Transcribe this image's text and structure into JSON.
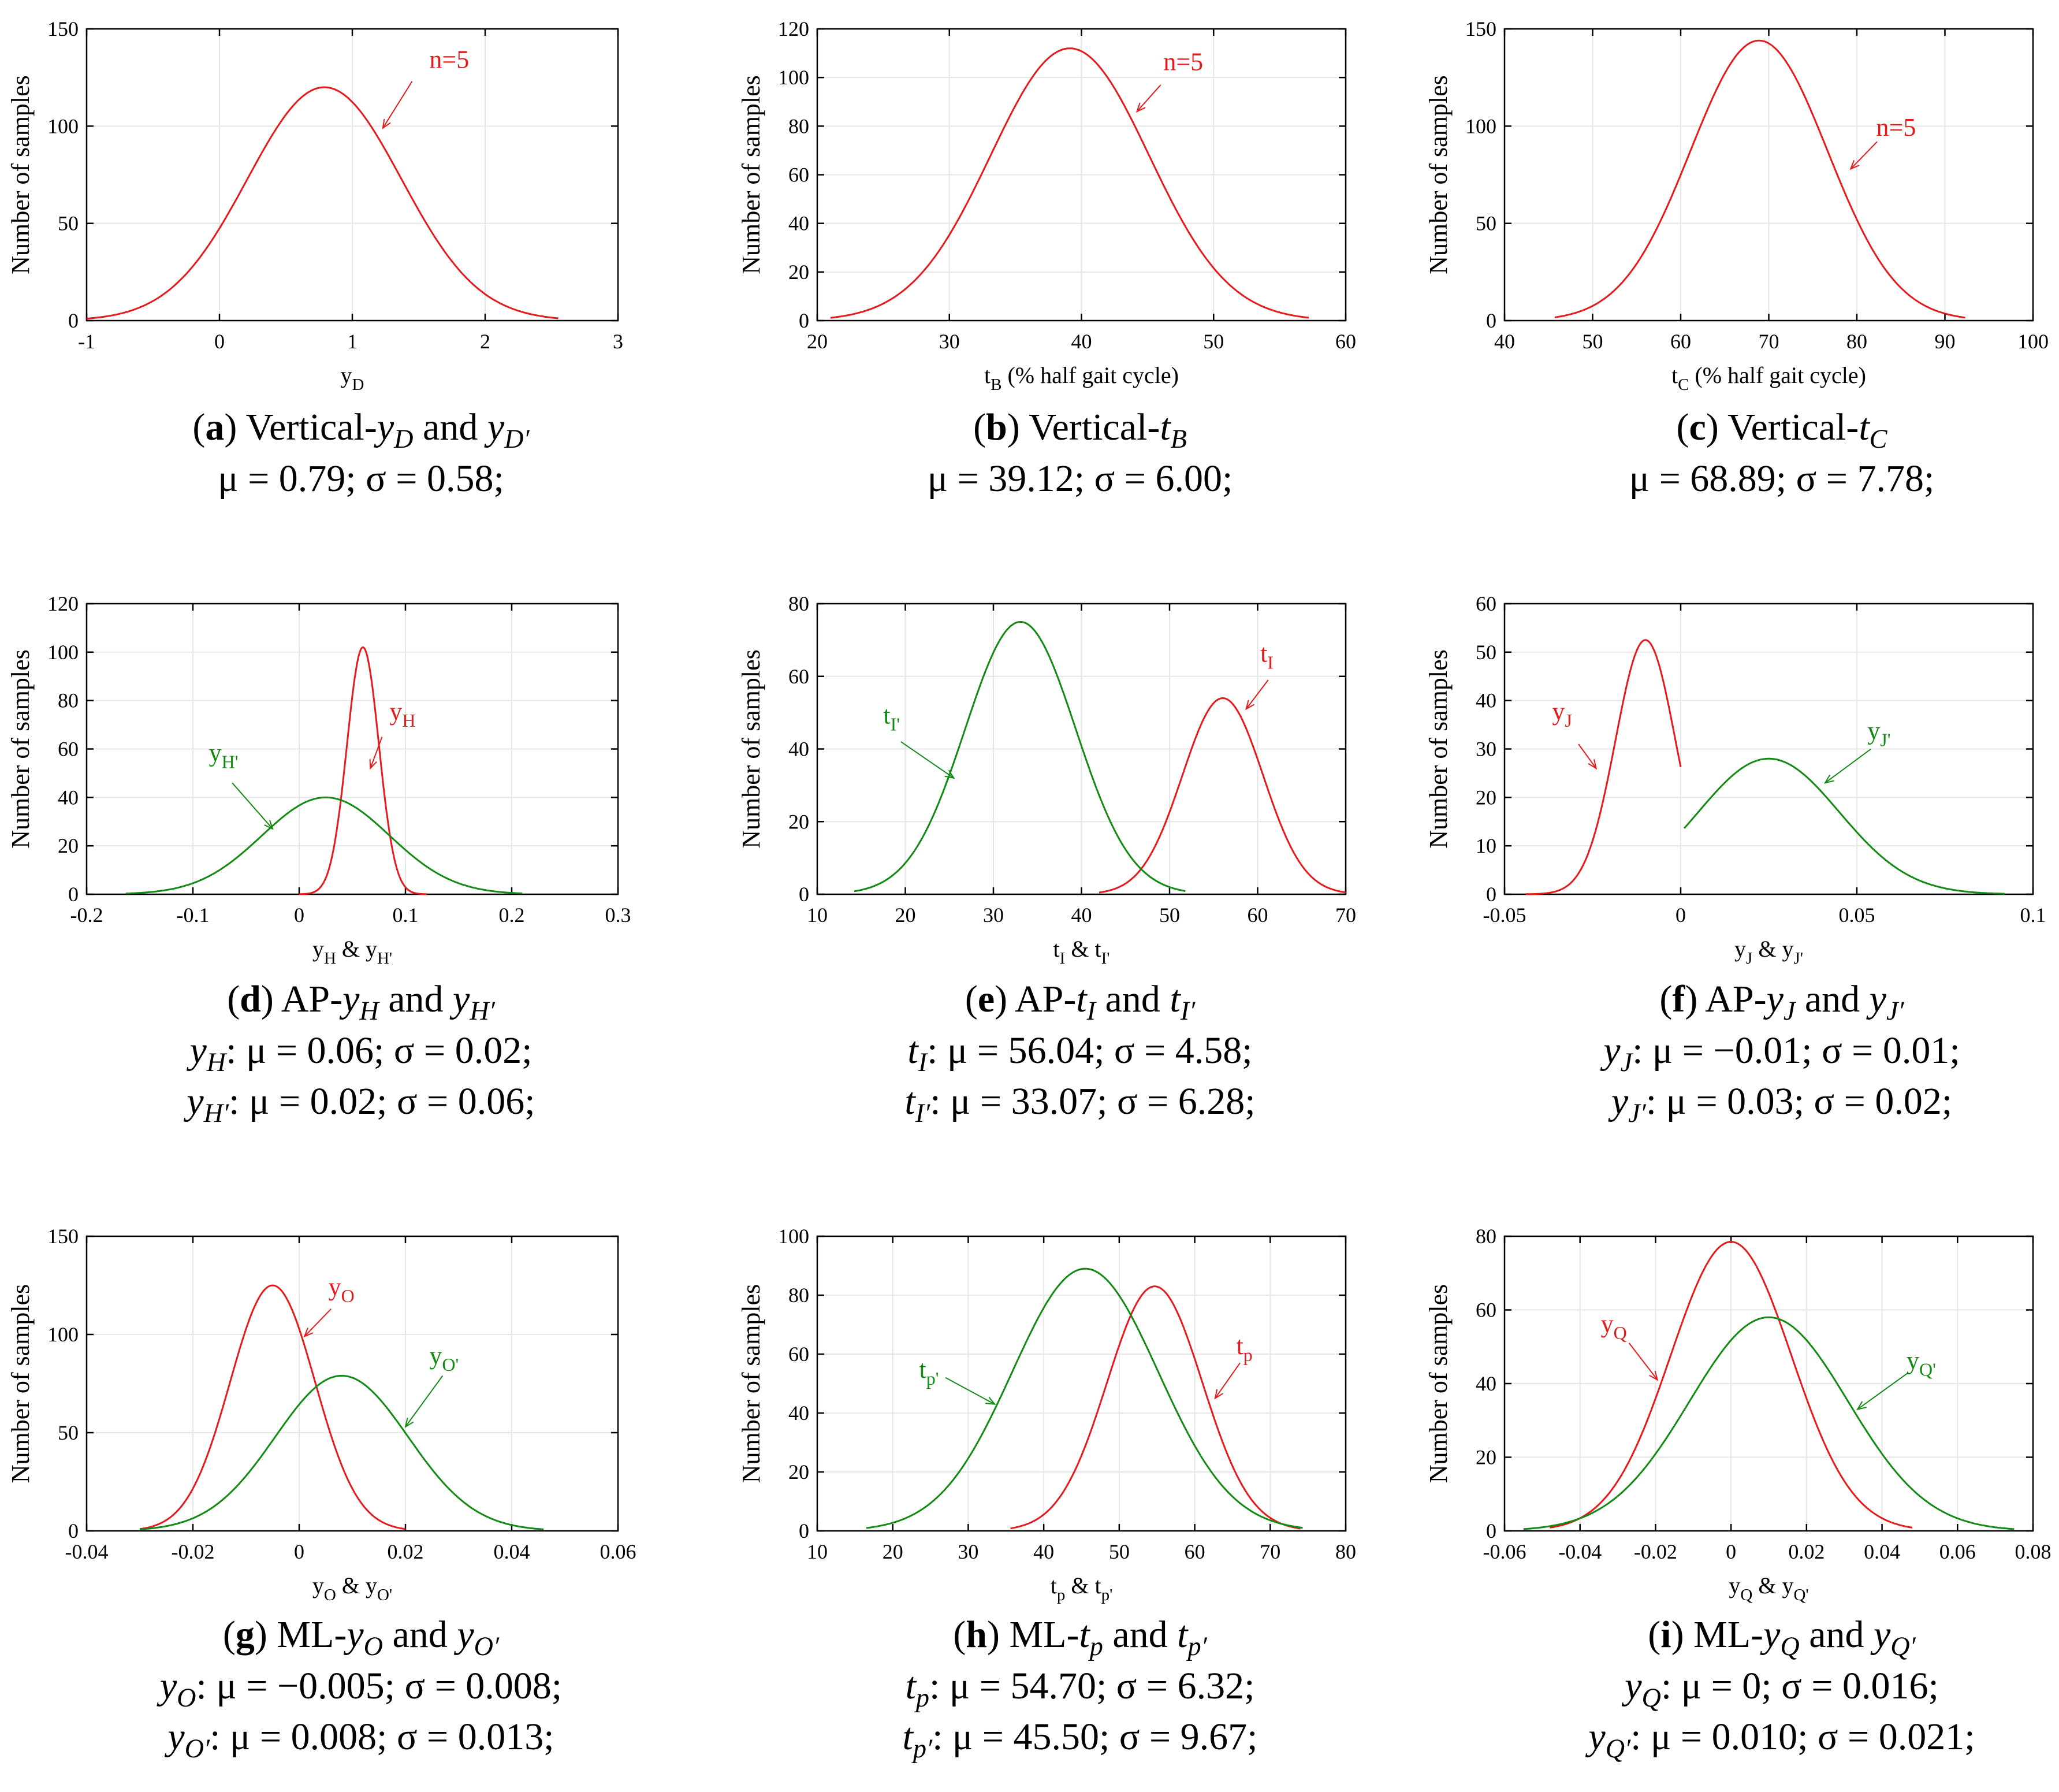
{
  "colors": {
    "red": "#e41a1c",
    "green": "#138a13",
    "axis": "#000000",
    "grid": "#e6e6e6"
  },
  "y_axis_label": "Number of samples",
  "chart_data": [
    {
      "id": "a",
      "type": "line",
      "title": "(a) Vertical-yD and yD'",
      "xlabel": {
        "base": "y",
        "sub": "D"
      },
      "xlim": [
        -1,
        3
      ],
      "xticks": [
        -1,
        0,
        1,
        2,
        3
      ],
      "ylim": [
        0,
        150
      ],
      "yticks": [
        0,
        50,
        100,
        150
      ],
      "series": [
        {
          "name": "n=5",
          "color": "red",
          "mean": 0.79,
          "sd": 0.58,
          "peak": 120,
          "xrange": [
            -1.0,
            2.55
          ]
        }
      ],
      "annotations": [
        {
          "label": "n=5",
          "color": "red",
          "text_at": [
            1.58,
            130
          ],
          "arrow_from": [
            1.45,
            123
          ],
          "arrow_to": [
            1.23,
            99
          ]
        }
      ],
      "caption": {
        "label": "a",
        "title": "Vertical-",
        "var1": {
          "base": "y",
          "sub": "D"
        },
        "joiner": " and ",
        "var2": {
          "base": "y",
          "sub": "D′"
        },
        "lines": [
          {
            "prefix": "",
            "stats": "μ = 0.79; σ = 0.58;"
          }
        ]
      }
    },
    {
      "id": "b",
      "type": "line",
      "title": "(b) Vertical-tB",
      "xlabel": {
        "base": "t",
        "sub": "B",
        "suffix": " (% half gait cycle)"
      },
      "xlim": [
        20,
        60
      ],
      "xticks": [
        20,
        30,
        40,
        50,
        60
      ],
      "ylim": [
        0,
        120
      ],
      "yticks": [
        0,
        20,
        40,
        60,
        80,
        100,
        120
      ],
      "series": [
        {
          "name": "n=5",
          "color": "red",
          "mean": 39.12,
          "sd": 6.0,
          "peak": 112,
          "xrange": [
            21.0,
            57.2
          ]
        }
      ],
      "annotations": [
        {
          "label": "n=5",
          "color": "red",
          "text_at": [
            46.2,
            103
          ],
          "arrow_from": [
            46.0,
            97
          ],
          "arrow_to": [
            44.2,
            86
          ]
        }
      ],
      "caption": {
        "label": "b",
        "title": "Vertical-",
        "var1": {
          "base": "t",
          "sub": "B"
        },
        "lines": [
          {
            "prefix": "",
            "stats": "μ = 39.12; σ = 6.00;"
          }
        ]
      }
    },
    {
      "id": "c",
      "type": "line",
      "title": "(c) Vertical-tC",
      "xlabel": {
        "base": "t",
        "sub": "C",
        "suffix": " (% half gait cycle)"
      },
      "xlim": [
        40,
        100
      ],
      "xticks": [
        40,
        50,
        60,
        70,
        80,
        90,
        100
      ],
      "ylim": [
        0,
        150
      ],
      "yticks": [
        0,
        50,
        100,
        150
      ],
      "series": [
        {
          "name": "n=5",
          "color": "red",
          "mean": 68.89,
          "sd": 7.78,
          "peak": 144,
          "xrange": [
            45.7,
            92.3
          ]
        }
      ],
      "annotations": [
        {
          "label": "n=5",
          "color": "red",
          "text_at": [
            82.2,
            95
          ],
          "arrow_from": [
            82.3,
            92
          ],
          "arrow_to": [
            79.3,
            78
          ]
        }
      ],
      "caption": {
        "label": "c",
        "title": "Vertical-",
        "var1": {
          "base": "t",
          "sub": "C"
        },
        "lines": [
          {
            "prefix": "",
            "stats": "μ = 68.89; σ = 7.78;"
          }
        ]
      }
    },
    {
      "id": "d",
      "type": "line",
      "title": "(d) AP-yH and yH'",
      "xlabel": {
        "base": "y",
        "sub": "H",
        "joiner": " & ",
        "base2": "y",
        "sub2": "H'"
      },
      "xlim": [
        -0.2,
        0.3
      ],
      "xticks": [
        -0.2,
        -0.1,
        0,
        0.1,
        0.2,
        0.3
      ],
      "ylim": [
        0,
        120
      ],
      "yticks": [
        0,
        20,
        40,
        60,
        80,
        100,
        120
      ],
      "series": [
        {
          "name": "yH",
          "color": "red",
          "mean": 0.06,
          "sd": 0.015,
          "peak": 102,
          "xrange": [
            0.0,
            0.12
          ]
        },
        {
          "name": "yH'",
          "color": "green",
          "mean": 0.025,
          "sd": 0.06,
          "peak": 40,
          "xrange": [
            -0.163,
            0.21
          ]
        }
      ],
      "annotations": [
        {
          "label": {
            "base": "y",
            "sub": "H"
          },
          "color": "red",
          "text_at": [
            0.085,
            72
          ],
          "arrow_from": [
            0.078,
            65
          ],
          "arrow_to": [
            0.067,
            52
          ]
        },
        {
          "label": {
            "base": "y",
            "sub": "H'"
          },
          "color": "green",
          "text_at": [
            -0.085,
            55
          ],
          "arrow_from": [
            -0.063,
            46
          ],
          "arrow_to": [
            -0.025,
            27
          ]
        }
      ],
      "caption": {
        "label": "d",
        "title": "AP-",
        "var1": {
          "base": "y",
          "sub": "H"
        },
        "joiner": " and ",
        "var2": {
          "base": "y",
          "sub": "H′"
        },
        "lines": [
          {
            "prefix": {
              "base": "y",
              "sub": "H"
            },
            "stats": ": μ = 0.06; σ = 0.02;"
          },
          {
            "prefix": {
              "base": "y",
              "sub": "H′"
            },
            "stats": ": μ = 0.02; σ = 0.06;"
          }
        ]
      }
    },
    {
      "id": "e",
      "type": "line",
      "title": "(e) AP-tI and tI'",
      "xlabel": {
        "base": "t",
        "sub": "I",
        "joiner": " & ",
        "base2": "t",
        "sub2": "I'"
      },
      "xlim": [
        10,
        70
      ],
      "xticks": [
        10,
        20,
        30,
        40,
        50,
        60,
        70
      ],
      "ylim": [
        0,
        80
      ],
      "yticks": [
        0,
        20,
        40,
        60,
        80
      ],
      "series": [
        {
          "name": "tI",
          "color": "red",
          "mean": 56.04,
          "sd": 4.58,
          "peak": 54,
          "xrange": [
            42.0,
            70.0
          ]
        },
        {
          "name": "tI'",
          "color": "green",
          "mean": 33.07,
          "sd": 6.28,
          "peak": 75,
          "xrange": [
            14.2,
            51.8
          ]
        }
      ],
      "annotations": [
        {
          "label": {
            "base": "t",
            "sub": "I"
          },
          "color": "red",
          "text_at": [
            60.3,
            64
          ],
          "arrow_from": [
            61.2,
            59
          ],
          "arrow_to": [
            58.7,
            51
          ]
        },
        {
          "label": {
            "base": "t",
            "sub": "I'"
          },
          "color": "green",
          "text_at": [
            17.5,
            47
          ],
          "arrow_from": [
            19.5,
            42
          ],
          "arrow_to": [
            25.5,
            32
          ]
        }
      ],
      "caption": {
        "label": "e",
        "title": "AP-",
        "var1": {
          "base": "t",
          "sub": "I"
        },
        "joiner": " and ",
        "var2": {
          "base": "t",
          "sub": "I′"
        },
        "lines": [
          {
            "prefix": {
              "base": "t",
              "sub": "I"
            },
            "stats": ": μ = 56.04; σ = 4.58;"
          },
          {
            "prefix": {
              "base": "t",
              "sub": "I′"
            },
            "stats": ": μ = 33.07; σ = 6.28;"
          }
        ]
      }
    },
    {
      "id": "f",
      "type": "line",
      "title": "(f) AP-yJ and yJ'",
      "xlabel": {
        "base": "y",
        "sub": "J",
        "joiner": " & ",
        "base2": "y",
        "sub2": "J'"
      },
      "xlim": [
        -0.05,
        0.1
      ],
      "xticks": [
        -0.05,
        0,
        0.05,
        0.1
      ],
      "ylim": [
        0,
        60
      ],
      "yticks": [
        0,
        10,
        20,
        30,
        40,
        50,
        60
      ],
      "series": [
        {
          "name": "yJ",
          "color": "red",
          "mean": -0.01,
          "sd": 0.0085,
          "peak": 52.5,
          "xrange": [
            -0.044,
            0.0
          ]
        },
        {
          "name": "yJ'",
          "color": "green",
          "mean": 0.025,
          "sd": 0.02,
          "peak": 28,
          "xrange": [
            0.001,
            0.092
          ]
        }
      ],
      "annotations": [
        {
          "label": {
            "base": "y",
            "sub": "J"
          },
          "color": "red",
          "text_at": [
            -0.0365,
            36
          ],
          "arrow_from": [
            -0.029,
            31
          ],
          "arrow_to": [
            -0.024,
            26
          ]
        },
        {
          "label": {
            "base": "y",
            "sub": "J'"
          },
          "color": "green",
          "text_at": [
            0.053,
            32
          ],
          "arrow_from": [
            0.054,
            30
          ],
          "arrow_to": [
            0.041,
            23
          ]
        }
      ],
      "caption": {
        "label": "f",
        "title": "AP-",
        "var1": {
          "base": "y",
          "sub": "J"
        },
        "joiner": " and ",
        "var2": {
          "base": "y",
          "sub": "J′"
        },
        "lines": [
          {
            "prefix": {
              "base": "y",
              "sub": "J"
            },
            "stats": ": μ = −0.01; σ = 0.01;"
          },
          {
            "prefix": {
              "base": "y",
              "sub": "J′"
            },
            "stats": ": μ = 0.03; σ = 0.02;"
          }
        ]
      }
    },
    {
      "id": "g",
      "type": "line",
      "title": "(g) ML-yO and yO'",
      "xlabel": {
        "base": "y",
        "sub": "O",
        "joiner": " & ",
        "base2": "y",
        "sub2": "O'"
      },
      "xlim": [
        -0.04,
        0.06
      ],
      "xticks": [
        -0.04,
        -0.02,
        0,
        0.02,
        0.04,
        0.06
      ],
      "ylim": [
        0,
        150
      ],
      "yticks": [
        0,
        50,
        100,
        150
      ],
      "series": [
        {
          "name": "yO",
          "color": "red",
          "mean": -0.005,
          "sd": 0.008,
          "peak": 125,
          "xrange": [
            -0.03,
            0.02
          ]
        },
        {
          "name": "yO'",
          "color": "green",
          "mean": 0.008,
          "sd": 0.0125,
          "peak": 79,
          "xrange": [
            -0.03,
            0.046
          ]
        }
      ],
      "annotations": [
        {
          "label": {
            "base": "y",
            "sub": "O"
          },
          "color": "red",
          "text_at": [
            0.0055,
            120
          ],
          "arrow_from": [
            0.006,
            113
          ],
          "arrow_to": [
            0.001,
            99
          ]
        },
        {
          "label": {
            "base": "y",
            "sub": "O'"
          },
          "color": "green",
          "text_at": [
            0.0245,
            85
          ],
          "arrow_from": [
            0.027,
            79
          ],
          "arrow_to": [
            0.02,
            53
          ]
        }
      ],
      "caption": {
        "label": "g",
        "title": "ML-",
        "var1": {
          "base": "y",
          "sub": "O"
        },
        "joiner": " and ",
        "var2": {
          "base": "y",
          "sub": "O′"
        },
        "lines": [
          {
            "prefix": {
              "base": "y",
              "sub": "O"
            },
            "stats": ": μ = −0.005; σ = 0.008;"
          },
          {
            "prefix": {
              "base": "y",
              "sub": "O′"
            },
            "stats": ": μ = 0.008;  σ = 0.013;"
          }
        ]
      }
    },
    {
      "id": "h",
      "type": "line",
      "title": "(h) ML-tp and tp'",
      "xlabel": {
        "base": "t",
        "sub": "p",
        "joiner": " & ",
        "base2": "t",
        "sub2": "p'"
      },
      "xlim": [
        10,
        80
      ],
      "xticks": [
        10,
        20,
        30,
        40,
        50,
        60,
        70,
        80
      ],
      "ylim": [
        0,
        100
      ],
      "yticks": [
        0,
        20,
        40,
        60,
        80,
        100
      ],
      "series": [
        {
          "name": "tp",
          "color": "red",
          "mean": 54.7,
          "sd": 6.32,
          "peak": 83,
          "xrange": [
            35.6,
            74.0
          ]
        },
        {
          "name": "tp'",
          "color": "green",
          "mean": 45.5,
          "sd": 9.67,
          "peak": 89,
          "xrange": [
            16.5,
            74.3
          ]
        }
      ],
      "annotations": [
        {
          "label": {
            "base": "t",
            "sub": "p"
          },
          "color": "red",
          "text_at": [
            65.5,
            60
          ],
          "arrow_from": [
            66.0,
            57
          ],
          "arrow_to": [
            62.7,
            45
          ]
        },
        {
          "label": {
            "base": "t",
            "sub": "p'"
          },
          "color": "green",
          "text_at": [
            23.5,
            52
          ],
          "arrow_from": [
            27.0,
            52
          ],
          "arrow_to": [
            33.5,
            43
          ]
        }
      ],
      "caption": {
        "label": "h",
        "title": "ML-",
        "var1": {
          "base": "t",
          "sub": "p"
        },
        "joiner": " and ",
        "var2": {
          "base": "t",
          "sub": "p′"
        },
        "lines": [
          {
            "prefix": {
              "base": "t",
              "sub": "p"
            },
            "stats": ": μ = 54.70; σ = 6.32;"
          },
          {
            "prefix": {
              "base": "t",
              "sub": "p′"
            },
            "stats": ": μ = 45.50; σ = 9.67;"
          }
        ]
      }
    },
    {
      "id": "i",
      "type": "line",
      "title": "(i) ML-yQ and yQ'",
      "xlabel": {
        "base": "y",
        "sub": "Q",
        "joiner": " & ",
        "base2": "y",
        "sub2": "Q'"
      },
      "xlim": [
        -0.06,
        0.08
      ],
      "xticks": [
        -0.06,
        -0.04,
        -0.02,
        0,
        0.02,
        0.04,
        0.06,
        0.08
      ],
      "ylim": [
        0,
        80
      ],
      "yticks": [
        0,
        20,
        40,
        60,
        80
      ],
      "series": [
        {
          "name": "yQ",
          "color": "red",
          "mean": 0.0,
          "sd": 0.016,
          "peak": 78.5,
          "xrange": [
            -0.048,
            0.048
          ]
        },
        {
          "name": "yQ'",
          "color": "green",
          "mean": 0.01,
          "sd": 0.021,
          "peak": 58,
          "xrange": [
            -0.055,
            0.075
          ]
        }
      ],
      "annotations": [
        {
          "label": {
            "base": "y",
            "sub": "Q"
          },
          "color": "red",
          "text_at": [
            -0.0345,
            54
          ],
          "arrow_from": [
            -0.027,
            51
          ],
          "arrow_to": [
            -0.0195,
            41
          ]
        },
        {
          "label": {
            "base": "y",
            "sub": "Q'"
          },
          "color": "green",
          "text_at": [
            0.0465,
            44
          ],
          "arrow_from": [
            0.047,
            43
          ],
          "arrow_to": [
            0.0335,
            33
          ]
        }
      ],
      "caption": {
        "label": "i",
        "title": "ML-",
        "var1": {
          "base": "y",
          "sub": "Q"
        },
        "joiner": " and ",
        "var2": {
          "base": "y",
          "sub": "Q′"
        },
        "lines": [
          {
            "prefix": {
              "base": "y",
              "sub": "Q"
            },
            "stats": ": μ = 0; σ = 0.016;"
          },
          {
            "prefix": {
              "base": "y",
              "sub": "Q′"
            },
            "stats": ": μ = 0.010; σ = 0.021;"
          }
        ]
      }
    }
  ]
}
